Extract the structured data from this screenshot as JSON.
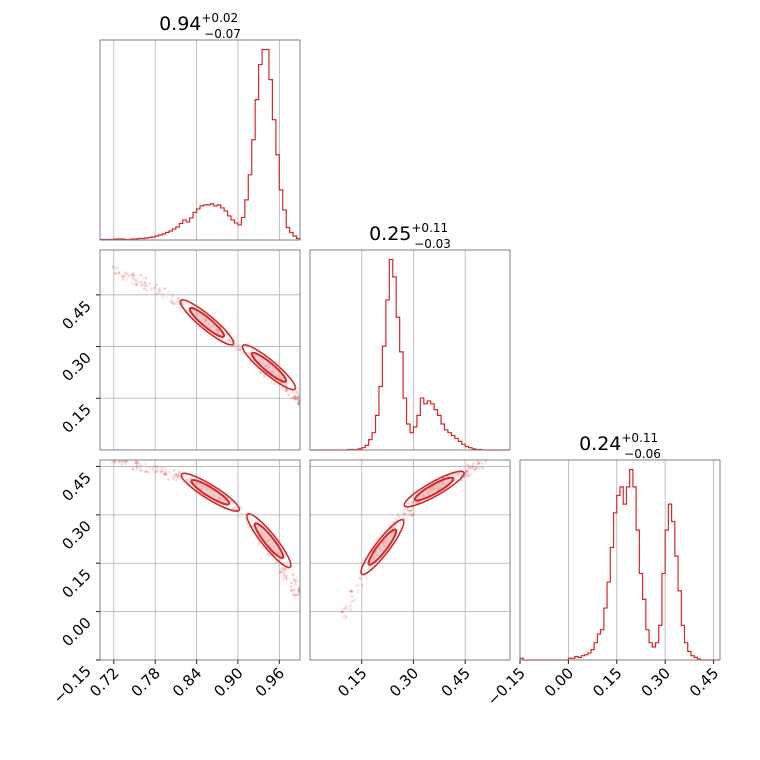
{
  "chart_data": {
    "type": "corner",
    "color": "#d62728",
    "parameters": [
      {
        "titles": {
          "value": "0.94",
          "plus": "+0.02",
          "minus": "−0.07"
        },
        "range": [
          0.7,
          0.99
        ]
      },
      {
        "titles": {
          "value": "0.25",
          "plus": "+0.11",
          "minus": "−0.03"
        },
        "range": [
          0.0,
          0.58
        ]
      },
      {
        "titles": {
          "value": "0.24",
          "plus": "+0.11",
          "minus": "−0.06"
        },
        "range": [
          -0.15,
          0.47
        ]
      }
    ],
    "ticks": {
      "p0": [
        "0.72",
        "0.78",
        "0.84",
        "0.90",
        "0.96"
      ],
      "p1": [
        "0.15",
        "0.30",
        "0.45"
      ],
      "p2": [
        "−0.15",
        "0.00",
        "0.15",
        "0.30",
        "0.45"
      ]
    },
    "histograms": [
      {
        "bins": [
          0.7,
          0.705,
          0.71,
          0.715,
          0.72,
          0.725,
          0.73,
          0.735,
          0.74,
          0.745,
          0.75,
          0.755,
          0.76,
          0.765,
          0.77,
          0.775,
          0.78,
          0.785,
          0.79,
          0.795,
          0.8,
          0.805,
          0.81,
          0.815,
          0.82,
          0.825,
          0.83,
          0.835,
          0.84,
          0.845,
          0.85,
          0.855,
          0.86,
          0.865,
          0.87,
          0.875,
          0.88,
          0.885,
          0.89,
          0.895,
          0.9,
          0.905,
          0.91,
          0.915,
          0.92,
          0.925,
          0.93,
          0.935,
          0.94,
          0.945,
          0.95,
          0.955,
          0.96,
          0.965,
          0.97,
          0.975,
          0.98,
          0.985,
          0.99
        ],
        "counts": [
          1,
          1,
          1,
          1,
          2,
          2,
          2,
          1,
          1,
          2,
          2,
          3,
          3,
          4,
          5,
          6,
          8,
          10,
          12,
          15,
          18,
          22,
          26,
          33,
          40,
          36,
          44,
          55,
          62,
          68,
          70,
          70,
          72,
          68,
          70,
          64,
          58,
          48,
          40,
          34,
          30,
          45,
          80,
          130,
          200,
          280,
          350,
          380,
          380,
          320,
          240,
          170,
          100,
          60,
          25,
          15,
          8,
          3
        ]
      },
      {
        "bins": [
          0.0,
          0.01,
          0.02,
          0.03,
          0.04,
          0.05,
          0.06,
          0.07,
          0.08,
          0.09,
          0.1,
          0.11,
          0.12,
          0.13,
          0.14,
          0.15,
          0.16,
          0.17,
          0.18,
          0.19,
          0.2,
          0.21,
          0.22,
          0.23,
          0.24,
          0.25,
          0.26,
          0.27,
          0.28,
          0.29,
          0.3,
          0.31,
          0.32,
          0.33,
          0.34,
          0.35,
          0.36,
          0.37,
          0.38,
          0.39,
          0.4,
          0.41,
          0.42,
          0.43,
          0.44,
          0.45,
          0.46,
          0.47,
          0.48,
          0.49,
          0.5,
          0.51,
          0.52,
          0.53,
          0.54,
          0.55,
          0.56,
          0.57,
          0.58
        ],
        "counts": [
          0,
          0,
          0,
          0,
          0,
          0,
          0,
          0,
          0,
          0,
          0,
          1,
          1,
          1,
          2,
          4,
          8,
          18,
          30,
          60,
          110,
          180,
          260,
          330,
          300,
          230,
          170,
          90,
          45,
          30,
          40,
          60,
          90,
          80,
          85,
          80,
          70,
          60,
          45,
          35,
          30,
          25,
          20,
          15,
          10,
          6,
          4,
          2,
          1,
          1,
          0,
          0,
          0,
          0,
          0,
          0,
          0,
          0
        ]
      },
      {
        "bins": [
          -0.15,
          -0.14,
          -0.13,
          -0.12,
          -0.11,
          -0.1,
          -0.09,
          -0.08,
          -0.07,
          -0.06,
          -0.05,
          -0.04,
          -0.03,
          -0.02,
          -0.01,
          0.0,
          0.01,
          0.02,
          0.03,
          0.04,
          0.05,
          0.06,
          0.07,
          0.08,
          0.09,
          0.1,
          0.11,
          0.12,
          0.13,
          0.14,
          0.15,
          0.16,
          0.17,
          0.18,
          0.19,
          0.2,
          0.21,
          0.22,
          0.23,
          0.24,
          0.25,
          0.26,
          0.27,
          0.28,
          0.29,
          0.3,
          0.31,
          0.32,
          0.33,
          0.34,
          0.35,
          0.36,
          0.37,
          0.38,
          0.39,
          0.4,
          0.41,
          0.42,
          0.43,
          0.44,
          0.45,
          0.46,
          0.47
        ],
        "counts": [
          2,
          0,
          0,
          0,
          0,
          0,
          0,
          0,
          0,
          0,
          0,
          0,
          0,
          0,
          0,
          2,
          2,
          4,
          3,
          5,
          6,
          8,
          12,
          20,
          30,
          35,
          60,
          90,
          130,
          170,
          190,
          200,
          180,
          200,
          220,
          200,
          150,
          100,
          70,
          35,
          20,
          15,
          20,
          40,
          100,
          150,
          180,
          160,
          120,
          80,
          40,
          20,
          10,
          5,
          3,
          1,
          0,
          0,
          0,
          0,
          0,
          0
        ]
      }
    ],
    "pairs": [
      {
        "x": 0,
        "y": 1,
        "ridge": [
          [
            0.72,
            0.52
          ],
          [
            0.78,
            0.47
          ],
          [
            0.84,
            0.4
          ],
          [
            0.9,
            0.3
          ],
          [
            0.96,
            0.2
          ],
          [
            0.99,
            0.14
          ]
        ],
        "cores": [
          [
            0.855,
            0.37
          ],
          [
            0.945,
            0.24
          ]
        ]
      },
      {
        "x": 0,
        "y": 2,
        "ridge": [
          [
            0.72,
            0.47
          ],
          [
            0.78,
            0.44
          ],
          [
            0.84,
            0.4
          ],
          [
            0.9,
            0.32
          ],
          [
            0.96,
            0.16
          ],
          [
            0.99,
            0.05
          ]
        ],
        "cores": [
          [
            0.86,
            0.37
          ],
          [
            0.945,
            0.22
          ]
        ]
      },
      {
        "x": 1,
        "y": 2,
        "ridge": [
          [
            0.1,
            -0.02
          ],
          [
            0.15,
            0.1
          ],
          [
            0.2,
            0.2
          ],
          [
            0.25,
            0.27
          ],
          [
            0.3,
            0.33
          ],
          [
            0.35,
            0.38
          ],
          [
            0.4,
            0.41
          ],
          [
            0.45,
            0.43
          ],
          [
            0.5,
            0.46
          ]
        ],
        "cores": [
          [
            0.21,
            0.2
          ],
          [
            0.36,
            0.38
          ]
        ]
      }
    ]
  }
}
